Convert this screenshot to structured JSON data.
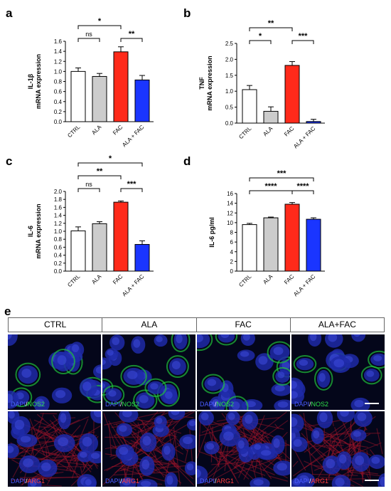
{
  "colors": {
    "CTRL": "#ffffff",
    "ALA": "#cccccc",
    "FAC": "#ff2a1a",
    "ALA + FAC": "#1a35ff"
  },
  "chart_data": [
    {
      "panel": "a",
      "type": "bar",
      "categories": [
        "CTRL",
        "ALA",
        "FAC",
        "ALA + FAC"
      ],
      "values": [
        1.0,
        0.9,
        1.39,
        0.83
      ],
      "errors": [
        0.07,
        0.06,
        0.1,
        0.09
      ],
      "ylabel_line1": "IL-1β",
      "ylabel_line2": "mRNA expression",
      "ylim": [
        0,
        1.6
      ],
      "yticks": [
        "0.0",
        "0.2",
        "0.4",
        "0.6",
        "0.8",
        "1.0",
        "1.2",
        "1.4",
        "1.6"
      ],
      "comparisons": [
        {
          "from": 0,
          "to": 1,
          "label": "ns",
          "level": 1
        },
        {
          "from": 2,
          "to": 3,
          "label": "**",
          "level": 1
        },
        {
          "from": 0,
          "to": 2,
          "label": "*",
          "level": 2
        }
      ]
    },
    {
      "panel": "b",
      "type": "bar",
      "categories": [
        "CTRL",
        "ALA",
        "FAC",
        "ALA + FAC"
      ],
      "values": [
        1.05,
        0.37,
        1.81,
        0.05
      ],
      "errors": [
        0.13,
        0.14,
        0.12,
        0.07
      ],
      "ylabel_line1": "TNF",
      "ylabel_line2": "mRNA expression",
      "ylim": [
        0,
        2.5
      ],
      "yticks": [
        "0.0",
        "0.5",
        "1.0",
        "1.5",
        "2.0",
        "2.5"
      ],
      "comparisons": [
        {
          "from": 0,
          "to": 1,
          "label": "*",
          "level": 1
        },
        {
          "from": 2,
          "to": 3,
          "label": "***",
          "level": 1
        },
        {
          "from": 0,
          "to": 2,
          "label": "**",
          "level": 2
        }
      ]
    },
    {
      "panel": "c",
      "type": "bar",
      "categories": [
        "CTRL",
        "ALA",
        "FAC",
        "ALA + FAC"
      ],
      "values": [
        1.01,
        1.19,
        1.73,
        0.67
      ],
      "errors": [
        0.1,
        0.05,
        0.03,
        0.09
      ],
      "ylabel_line1": "IL-6",
      "ylabel_line2": "mRNA expression",
      "ylim": [
        0,
        2.0
      ],
      "yticks": [
        "0.0",
        "0.2",
        "0.4",
        "0.6",
        "0.8",
        "1.0",
        "1.2",
        "1.4",
        "1.6",
        "1.8",
        "2.0"
      ],
      "comparisons": [
        {
          "from": 0,
          "to": 1,
          "label": "ns",
          "level": 1
        },
        {
          "from": 2,
          "to": 3,
          "label": "***",
          "level": 1
        },
        {
          "from": 0,
          "to": 2,
          "label": "**",
          "level": 2
        },
        {
          "from": 0,
          "to": 3,
          "label": "*",
          "level": 3
        }
      ]
    },
    {
      "panel": "d",
      "type": "bar",
      "categories": [
        "CTRL",
        "ALA",
        "FAC",
        "ALA + FAC"
      ],
      "values": [
        9.6,
        11.0,
        13.8,
        10.7
      ],
      "errors": [
        0.25,
        0.15,
        0.35,
        0.3
      ],
      "ylabel_line1": "IL-6 pg/ml",
      "ylabel_line2": "",
      "ylim": [
        0,
        16
      ],
      "yticks": [
        "0",
        "2",
        "4",
        "6",
        "8",
        "10",
        "12",
        "14",
        "16"
      ],
      "comparisons": [
        {
          "from": 0,
          "to": 2,
          "label": "****",
          "level": 1
        },
        {
          "from": 2,
          "to": 3,
          "label": "****",
          "level": 1
        },
        {
          "from": 0,
          "to": 3,
          "label": "***",
          "level": 2
        }
      ]
    }
  ],
  "panel_e": {
    "letter": "e",
    "headers": [
      "CTRL",
      "ALA",
      "FAC",
      "ALA+FAC"
    ],
    "row1": {
      "stain_a": "DAPI",
      "sep": "/",
      "stain_b": "NOS2"
    },
    "row2": {
      "stain_a": "DAPI",
      "sep": "/",
      "stain_b": "ARG1"
    }
  }
}
